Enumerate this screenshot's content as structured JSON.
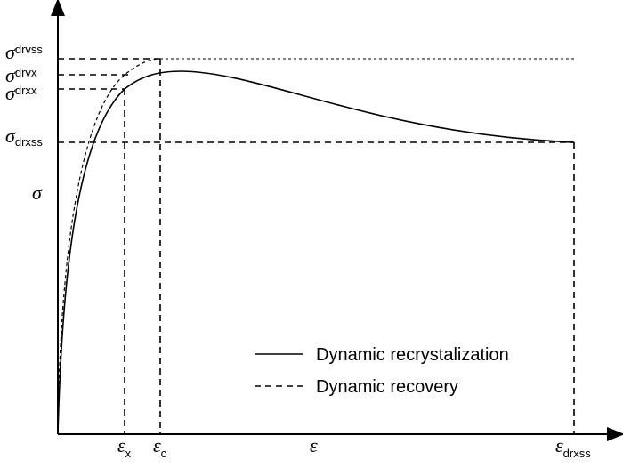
{
  "y_axis": {
    "label": "σ",
    "levels": [
      {
        "symbol": "σ",
        "subscript": "drvss"
      },
      {
        "symbol": "σ",
        "subscript": "drvx"
      },
      {
        "symbol": "σ",
        "subscript": "drxx"
      },
      {
        "symbol": "σ",
        "subscript": "drxss"
      }
    ]
  },
  "x_axis": {
    "label": "ε",
    "marks": [
      {
        "symbol": "ε",
        "subscript": "x"
      },
      {
        "symbol": "ε",
        "subscript": "c"
      },
      {
        "symbol": "ε",
        "subscript": "drxss"
      }
    ]
  },
  "legend": [
    {
      "label": "Dynamic recrystalization"
    },
    {
      "label": "Dynamic recovery"
    }
  ]
}
